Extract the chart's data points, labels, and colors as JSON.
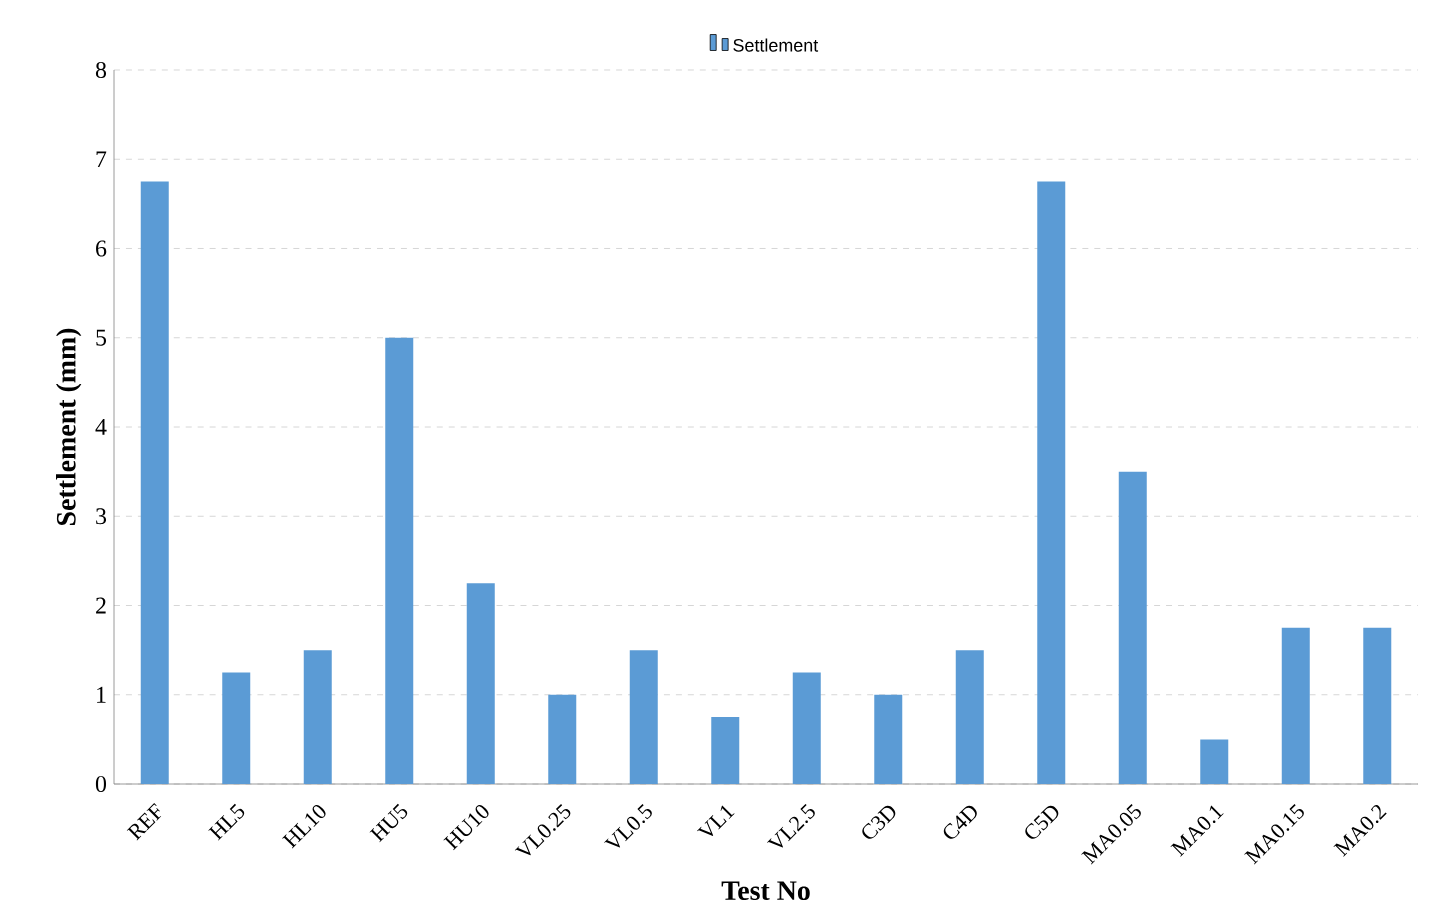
{
  "chart_data": {
    "type": "bar",
    "xlabel": "Test No",
    "ylabel": "Settlement (mm)",
    "categories": [
      "REF",
      "HL5",
      "HL10",
      "HU5",
      "HU10",
      "VL0.25",
      "VL0.5",
      "VL1",
      "VL2.5",
      "C3D",
      "C4D",
      "C5D",
      "MA0.05",
      "MA0.1",
      "MA0.15",
      "MA0.2"
    ],
    "series": [
      {
        "name": "Settlement",
        "color": "#5b9bd5",
        "values": [
          6.75,
          1.25,
          1.5,
          5,
          2.25,
          1,
          1.5,
          0.75,
          1.25,
          1,
          1.5,
          6.75,
          3.5,
          0.5,
          1.75,
          1.75
        ]
      }
    ],
    "ylim": [
      0,
      8
    ],
    "yticks": [
      0,
      1,
      2,
      3,
      4,
      5,
      6,
      7,
      8
    ],
    "grid": "y",
    "legend": "top"
  }
}
